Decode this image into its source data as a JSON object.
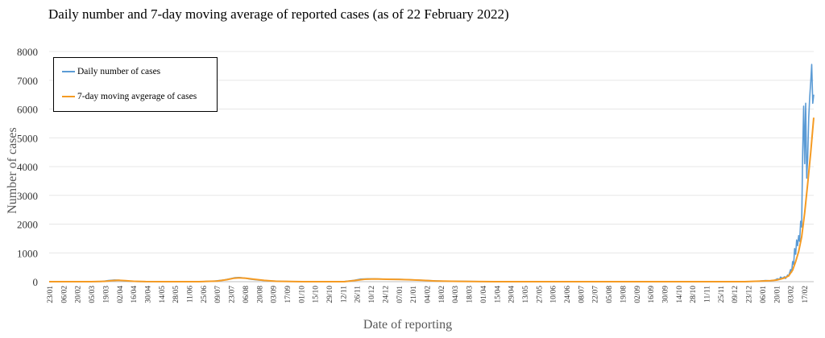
{
  "chart_data": {
    "type": "line",
    "title": "Daily number and 7-day moving average of reported cases (as of 22 February 2022)",
    "xlabel": "Date of reporting",
    "ylabel": "Number of cases",
    "ylim": [
      0,
      8000
    ],
    "yticks": [
      0,
      1000,
      2000,
      3000,
      4000,
      5000,
      6000,
      7000,
      8000
    ],
    "xlim_start": "2020-01-23",
    "xlim_end": "2022-02-22",
    "x_tick_labels": [
      "23/01",
      "06/02",
      "20/02",
      "05/03",
      "19/03",
      "02/04",
      "16/04",
      "30/04",
      "14/05",
      "28/05",
      "11/06",
      "25/06",
      "09/07",
      "23/07",
      "06/08",
      "20/08",
      "03/09",
      "17/09",
      "01/10",
      "15/10",
      "29/10",
      "12/11",
      "26/11",
      "10/12",
      "24/12",
      "07/01",
      "21/01",
      "04/02",
      "18/02",
      "04/03",
      "18/03",
      "01/04",
      "15/04",
      "29/04",
      "13/05",
      "27/05",
      "10/06",
      "24/06",
      "08/07",
      "22/07",
      "05/08",
      "19/08",
      "02/09",
      "16/09",
      "30/09",
      "14/10",
      "28/10",
      "11/11",
      "25/11",
      "09/12",
      "23/12",
      "06/01",
      "20/01",
      "03/02",
      "17/02"
    ],
    "legend_position": "top-left",
    "series": [
      {
        "name": "Daily number of cases",
        "color": "#5B9BD5",
        "points": [
          [
            "2020-01-23",
            0
          ],
          [
            "2020-03-01",
            0
          ],
          [
            "2020-03-15",
            5
          ],
          [
            "2020-03-22",
            40
          ],
          [
            "2020-03-28",
            60
          ],
          [
            "2020-04-02",
            50
          ],
          [
            "2020-04-06",
            30
          ],
          [
            "2020-04-12",
            15
          ],
          [
            "2020-04-20",
            5
          ],
          [
            "2020-05-10",
            0
          ],
          [
            "2020-06-20",
            0
          ],
          [
            "2020-07-05",
            20
          ],
          [
            "2020-07-15",
            60
          ],
          [
            "2020-07-22",
            110
          ],
          [
            "2020-07-26",
            140
          ],
          [
            "2020-07-30",
            145
          ],
          [
            "2020-08-04",
            130
          ],
          [
            "2020-08-10",
            90
          ],
          [
            "2020-08-18",
            60
          ],
          [
            "2020-08-28",
            30
          ],
          [
            "2020-09-10",
            10
          ],
          [
            "2020-10-01",
            0
          ],
          [
            "2020-11-10",
            0
          ],
          [
            "2020-11-20",
            40
          ],
          [
            "2020-11-28",
            90
          ],
          [
            "2020-12-05",
            100
          ],
          [
            "2020-12-15",
            95
          ],
          [
            "2020-12-25",
            85
          ],
          [
            "2021-01-05",
            80
          ],
          [
            "2021-01-15",
            70
          ],
          [
            "2021-01-25",
            55
          ],
          [
            "2021-02-05",
            35
          ],
          [
            "2021-02-18",
            20
          ],
          [
            "2021-03-10",
            10
          ],
          [
            "2021-04-10",
            0
          ],
          [
            "2021-12-15",
            0
          ],
          [
            "2021-12-28",
            15
          ],
          [
            "2022-01-05",
            40
          ],
          [
            "2022-01-10",
            30
          ],
          [
            "2022-01-14",
            50
          ],
          [
            "2022-01-17",
            100
          ],
          [
            "2022-01-19",
            80
          ],
          [
            "2022-01-20",
            160
          ],
          [
            "2022-01-22",
            120
          ],
          [
            "2022-01-24",
            170
          ],
          [
            "2022-01-25",
            110
          ],
          [
            "2022-01-27",
            230
          ],
          [
            "2022-01-28",
            190
          ],
          [
            "2022-01-30",
            420
          ],
          [
            "2022-01-31",
            330
          ],
          [
            "2022-02-01",
            700
          ],
          [
            "2022-02-02",
            600
          ],
          [
            "2022-02-03",
            1150
          ],
          [
            "2022-02-04",
            950
          ],
          [
            "2022-02-05",
            1450
          ],
          [
            "2022-02-06",
            1250
          ],
          [
            "2022-02-07",
            1600
          ],
          [
            "2022-02-08",
            1400
          ],
          [
            "2022-02-09",
            2100
          ],
          [
            "2022-02-10",
            1900
          ],
          [
            "2022-02-11",
            4500
          ],
          [
            "2022-02-12",
            6100
          ],
          [
            "2022-02-13",
            4100
          ],
          [
            "2022-02-14",
            6200
          ],
          [
            "2022-02-15",
            3600
          ],
          [
            "2022-02-16",
            4300
          ],
          [
            "2022-02-17",
            5700
          ],
          [
            "2022-02-18",
            6400
          ],
          [
            "2022-02-19",
            6950
          ],
          [
            "2022-02-20",
            7550
          ],
          [
            "2022-02-21",
            6200
          ],
          [
            "2022-02-22",
            6500
          ]
        ]
      },
      {
        "name": "7-day moving avgerage of cases",
        "color": "#F59B23",
        "points": [
          [
            "2020-01-23",
            0
          ],
          [
            "2020-03-05",
            0
          ],
          [
            "2020-03-18",
            10
          ],
          [
            "2020-03-25",
            35
          ],
          [
            "2020-04-01",
            50
          ],
          [
            "2020-04-08",
            35
          ],
          [
            "2020-04-16",
            15
          ],
          [
            "2020-04-28",
            3
          ],
          [
            "2020-05-15",
            0
          ],
          [
            "2020-06-20",
            0
          ],
          [
            "2020-07-08",
            20
          ],
          [
            "2020-07-18",
            70
          ],
          [
            "2020-07-25",
            120
          ],
          [
            "2020-07-30",
            135
          ],
          [
            "2020-08-06",
            120
          ],
          [
            "2020-08-14",
            85
          ],
          [
            "2020-08-24",
            45
          ],
          [
            "2020-09-05",
            15
          ],
          [
            "2020-10-01",
            0
          ],
          [
            "2020-11-12",
            0
          ],
          [
            "2020-11-24",
            50
          ],
          [
            "2020-12-02",
            85
          ],
          [
            "2020-12-12",
            95
          ],
          [
            "2020-12-24",
            85
          ],
          [
            "2021-01-06",
            75
          ],
          [
            "2021-01-18",
            65
          ],
          [
            "2021-01-30",
            45
          ],
          [
            "2021-02-10",
            25
          ],
          [
            "2021-03-05",
            10
          ],
          [
            "2021-04-10",
            0
          ],
          [
            "2021-12-15",
            0
          ],
          [
            "2022-01-01",
            20
          ],
          [
            "2022-01-10",
            35
          ],
          [
            "2022-01-16",
            55
          ],
          [
            "2022-01-20",
            90
          ],
          [
            "2022-01-24",
            130
          ],
          [
            "2022-01-28",
            200
          ],
          [
            "2022-02-01",
            400
          ],
          [
            "2022-02-04",
            700
          ],
          [
            "2022-02-07",
            1050
          ],
          [
            "2022-02-10",
            1550
          ],
          [
            "2022-02-13",
            2400
          ],
          [
            "2022-02-16",
            3400
          ],
          [
            "2022-02-19",
            4500
          ],
          [
            "2022-02-22",
            5700
          ]
        ]
      }
    ]
  }
}
